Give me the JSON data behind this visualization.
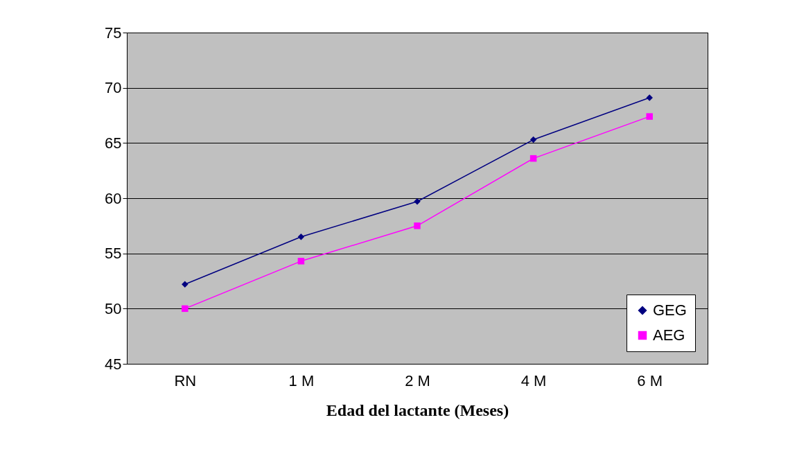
{
  "chart_data": {
    "type": "line",
    "xlabel": "Edad del lactante (Meses)",
    "categories": [
      "RN",
      "1 M",
      "2 M",
      "4 M",
      "6 M"
    ],
    "series": [
      {
        "name": "GEG",
        "color": "#000080",
        "marker": "diamond",
        "values": [
          52.2,
          56.5,
          59.7,
          65.3,
          69.1
        ]
      },
      {
        "name": "AEG",
        "color": "#ff00ff",
        "marker": "square",
        "values": [
          50.0,
          54.3,
          57.5,
          63.6,
          67.4
        ]
      }
    ],
    "ylim": [
      45,
      75
    ],
    "yticks": [
      45,
      50,
      55,
      60,
      65,
      70,
      75
    ],
    "grid": "y",
    "legend": "bottom right",
    "line_style": "solid"
  }
}
